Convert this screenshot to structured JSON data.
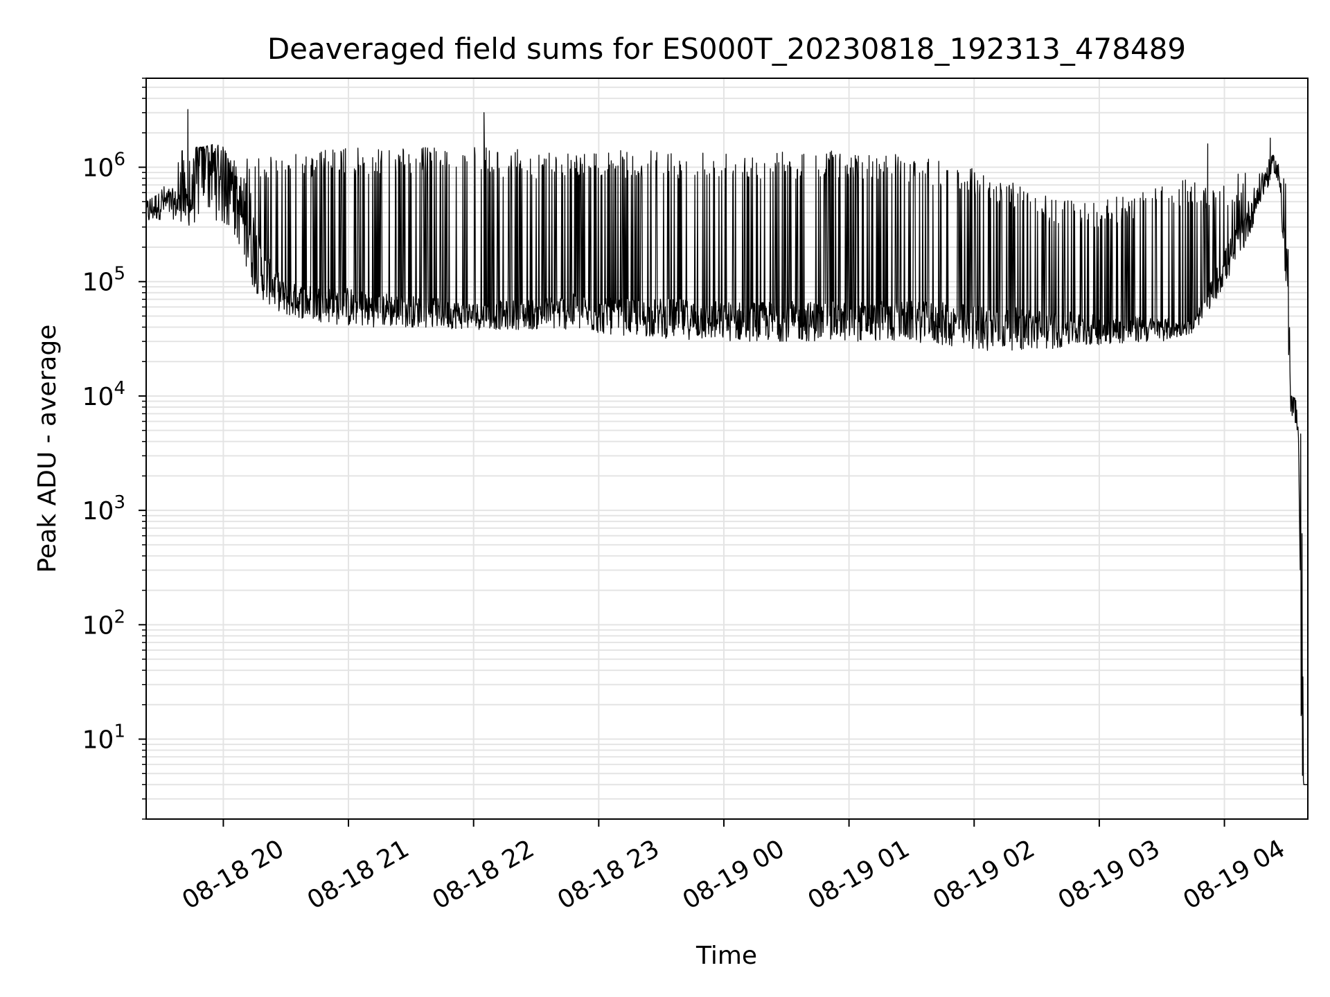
{
  "chart_data": {
    "type": "line",
    "title": "Deaveraged field sums for ES000T_20230818_192313_478489",
    "xlabel": "Time",
    "ylabel": "Peak ADU - average",
    "yscale": "log",
    "ylim": [
      2,
      6000000
    ],
    "xlim": [
      "2023-08-18 19:23",
      "2023-08-19 04:40"
    ],
    "grid": true,
    "x_ticks": [
      {
        "t": "2023-08-18 20:00",
        "label": "08-18 20"
      },
      {
        "t": "2023-08-18 21:00",
        "label": "08-18 21"
      },
      {
        "t": "2023-08-18 22:00",
        "label": "08-18 22"
      },
      {
        "t": "2023-08-18 23:00",
        "label": "08-18 23"
      },
      {
        "t": "2023-08-19 00:00",
        "label": "08-19 00"
      },
      {
        "t": "2023-08-19 01:00",
        "label": "08-19 01"
      },
      {
        "t": "2023-08-19 02:00",
        "label": "08-19 02"
      },
      {
        "t": "2023-08-19 03:00",
        "label": "08-19 03"
      },
      {
        "t": "2023-08-19 04:00",
        "label": "08-19 04"
      }
    ],
    "y_ticks": [
      {
        "v": 10,
        "base": "10",
        "exp": "1"
      },
      {
        "v": 100,
        "base": "10",
        "exp": "2"
      },
      {
        "v": 1000,
        "base": "10",
        "exp": "3"
      },
      {
        "v": 10000,
        "base": "10",
        "exp": "4"
      },
      {
        "v": 100000,
        "base": "10",
        "exp": "5"
      },
      {
        "v": 1000000,
        "base": "10",
        "exp": "6"
      }
    ],
    "line_color": "#000000",
    "grid_color": "#e4e4e4",
    "series": [
      {
        "x": [
          "2023-08-18 19:23",
          "2023-08-18 19:30",
          "2023-08-18 19:38",
          "2023-08-18 19:44",
          "2023-08-18 19:50",
          "2023-08-18 19:56",
          "2023-08-18 20:00",
          "2023-08-18 20:04",
          "2023-08-18 20:08",
          "2023-08-18 20:12",
          "2023-08-18 20:18",
          "2023-08-18 20:30",
          "2023-08-18 20:45",
          "2023-08-18 21:00",
          "2023-08-18 21:30",
          "2023-08-18 22:00",
          "2023-08-18 22:30",
          "2023-08-18 22:45",
          "2023-08-18 23:00",
          "2023-08-18 23:30",
          "2023-08-19 00:00",
          "2023-08-19 00:30",
          "2023-08-19 01:00",
          "2023-08-19 01:30",
          "2023-08-19 02:00",
          "2023-08-19 02:30",
          "2023-08-19 03:00",
          "2023-08-19 03:30",
          "2023-08-19 03:45",
          "2023-08-19 04:00",
          "2023-08-19 04:10",
          "2023-08-19 04:18",
          "2023-08-19 04:24",
          "2023-08-19 04:27",
          "2023-08-19 04:30",
          "2023-08-19 04:32",
          "2023-08-19 04:34",
          "2023-08-19 04:35",
          "2023-08-19 04:36",
          "2023-08-19 04:37",
          "2023-08-19 04:38",
          "2023-08-19 04:40"
        ],
        "y": [
          400000,
          500000,
          470000,
          450000,
          1200000,
          900000,
          800000,
          500000,
          400000,
          300000,
          120000,
          70000,
          65000,
          60000,
          55000,
          50000,
          52000,
          55000,
          50000,
          48000,
          45000,
          45000,
          45000,
          45000,
          40000,
          38000,
          38000,
          38000,
          40000,
          130000,
          300000,
          700000,
          1100000,
          700000,
          100000,
          9000,
          8000,
          5000,
          2000,
          10,
          4,
          4
        ],
        "upper_envelope": [
          500000,
          600000,
          1500000,
          1500000,
          1500000,
          1600000,
          1500000,
          1200000,
          1100000,
          1200000,
          1300000,
          1400000,
          1400000,
          1500000,
          1500000,
          1500000,
          1400000,
          1400000,
          1400000,
          1400000,
          1400000,
          1400000,
          1400000,
          1300000,
          1000000,
          600000,
          500000,
          700000,
          800000,
          700000,
          1000000,
          1200000,
          1500000,
          1200000,
          900000,
          10000,
          9500,
          8000,
          6000,
          5000,
          4,
          4
        ],
        "lower_envelope": [
          300000,
          350000,
          350000,
          300000,
          350000,
          350000,
          300000,
          250000,
          200000,
          100000,
          70000,
          50000,
          45000,
          40000,
          40000,
          38000,
          38000,
          38000,
          35000,
          32000,
          30000,
          30000,
          30000,
          30000,
          25000,
          25000,
          28000,
          30000,
          35000,
          90000,
          200000,
          500000,
          900000,
          500000,
          40000,
          5500,
          5000,
          4000,
          1000,
          5,
          4,
          4
        ],
        "spikes": [
          {
            "t": "2023-08-18 19:43",
            "v": 3200000
          },
          {
            "t": "2023-08-18 22:05",
            "v": 3000000
          },
          {
            "t": "2023-08-19 04:22",
            "v": 1800000
          },
          {
            "t": "2023-08-19 03:52",
            "v": 1600000
          }
        ]
      }
    ]
  }
}
